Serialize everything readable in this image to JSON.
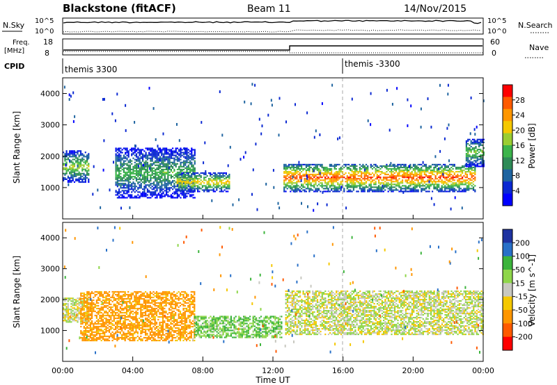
{
  "header": {
    "station": "Blackstone (fitACF)",
    "beam": "Beam 11",
    "date": "14/Nov/2015"
  },
  "summary_panels": {
    "nsky": {
      "left_label": "N.Sky",
      "left_top_tick": "10^5",
      "left_bottom_tick": "10^0",
      "right_label": "N.Search",
      "right_top_tick": "10^5",
      "right_bottom_tick": "10^0"
    },
    "freq": {
      "left_label_line1": "Freq.",
      "left_label_line2": "[MHz]",
      "left_top_tick": "18",
      "left_bottom_tick": "8",
      "right_label": "Nave",
      "right_top_tick": "60",
      "right_bottom_tick": "0"
    },
    "cpid": {
      "label": "CPID",
      "program1": "themis 3300",
      "program2": "themis -3300"
    }
  },
  "power_colorbar": {
    "title": "Power [dB]",
    "ticks": [
      "28",
      "24",
      "20",
      "16",
      "12",
      "8",
      "4"
    ],
    "colors": [
      "#ff0000",
      "#ff5a00",
      "#ff9600",
      "#f5c800",
      "#9acd32",
      "#3cb44b",
      "#2e8b57",
      "#1e64a0",
      "#0a28d2",
      "#0000ff"
    ]
  },
  "velocity_colorbar": {
    "title": "Velocity [m s^-1]",
    "ticks": [
      "200",
      "100",
      "50",
      "15",
      "-15",
      "-50",
      "-100",
      "-200"
    ],
    "colors": [
      "#1e32a0",
      "#2870c8",
      "#3cb43c",
      "#8fd64a",
      "#c8c8c0",
      "#f5c800",
      "#ff9600",
      "#ff5a00",
      "#ff0000"
    ]
  },
  "chart_data": [
    {
      "type": "heatmap",
      "panel": "power",
      "ylabel": "Slant Range [km]",
      "ylim": [
        0,
        4500
      ],
      "yticks": [
        1000,
        2000,
        3000,
        4000
      ],
      "xlim_hours": [
        0,
        24
      ],
      "description_bands": [
        {
          "t0": 0.0,
          "t1": 1.5,
          "r0": 1200,
          "r1": 2200,
          "peak_db": 20
        },
        {
          "t0": 3.0,
          "t1": 7.5,
          "r0": 700,
          "r1": 2300,
          "peak_db": 16
        },
        {
          "t0": 6.5,
          "t1": 9.5,
          "r0": 900,
          "r1": 1500,
          "peak_db": 24
        },
        {
          "t0": 12.6,
          "t1": 23.5,
          "r0": 900,
          "r1": 1800,
          "peak_db": 30
        },
        {
          "t0": 23.0,
          "t1": 24.0,
          "r0": 1700,
          "r1": 2600,
          "peak_db": 18
        }
      ]
    },
    {
      "type": "heatmap",
      "panel": "velocity",
      "ylabel": "Slant Range [km]",
      "xlabel": "Time UT",
      "ylim": [
        0,
        4500
      ],
      "yticks": [
        1000,
        2000,
        3000,
        4000
      ],
      "xlim_hours": [
        0,
        24
      ],
      "xticks": [
        "00:00",
        "04:00",
        "08:00",
        "12:00",
        "16:00",
        "20:00",
        "00:00"
      ],
      "description_bands": [
        {
          "t0": 0.0,
          "t1": 1.5,
          "r0": 1300,
          "r1": 2100,
          "velocity": 0
        },
        {
          "t0": 1.0,
          "t1": 7.5,
          "r0": 700,
          "r1": 2300,
          "velocity": -70
        },
        {
          "t0": 7.5,
          "t1": 12.5,
          "r0": 800,
          "r1": 1500,
          "velocity": 30
        },
        {
          "t0": 12.7,
          "t1": 24.0,
          "r0": 900,
          "r1": 2300,
          "velocity": 0
        }
      ]
    }
  ]
}
